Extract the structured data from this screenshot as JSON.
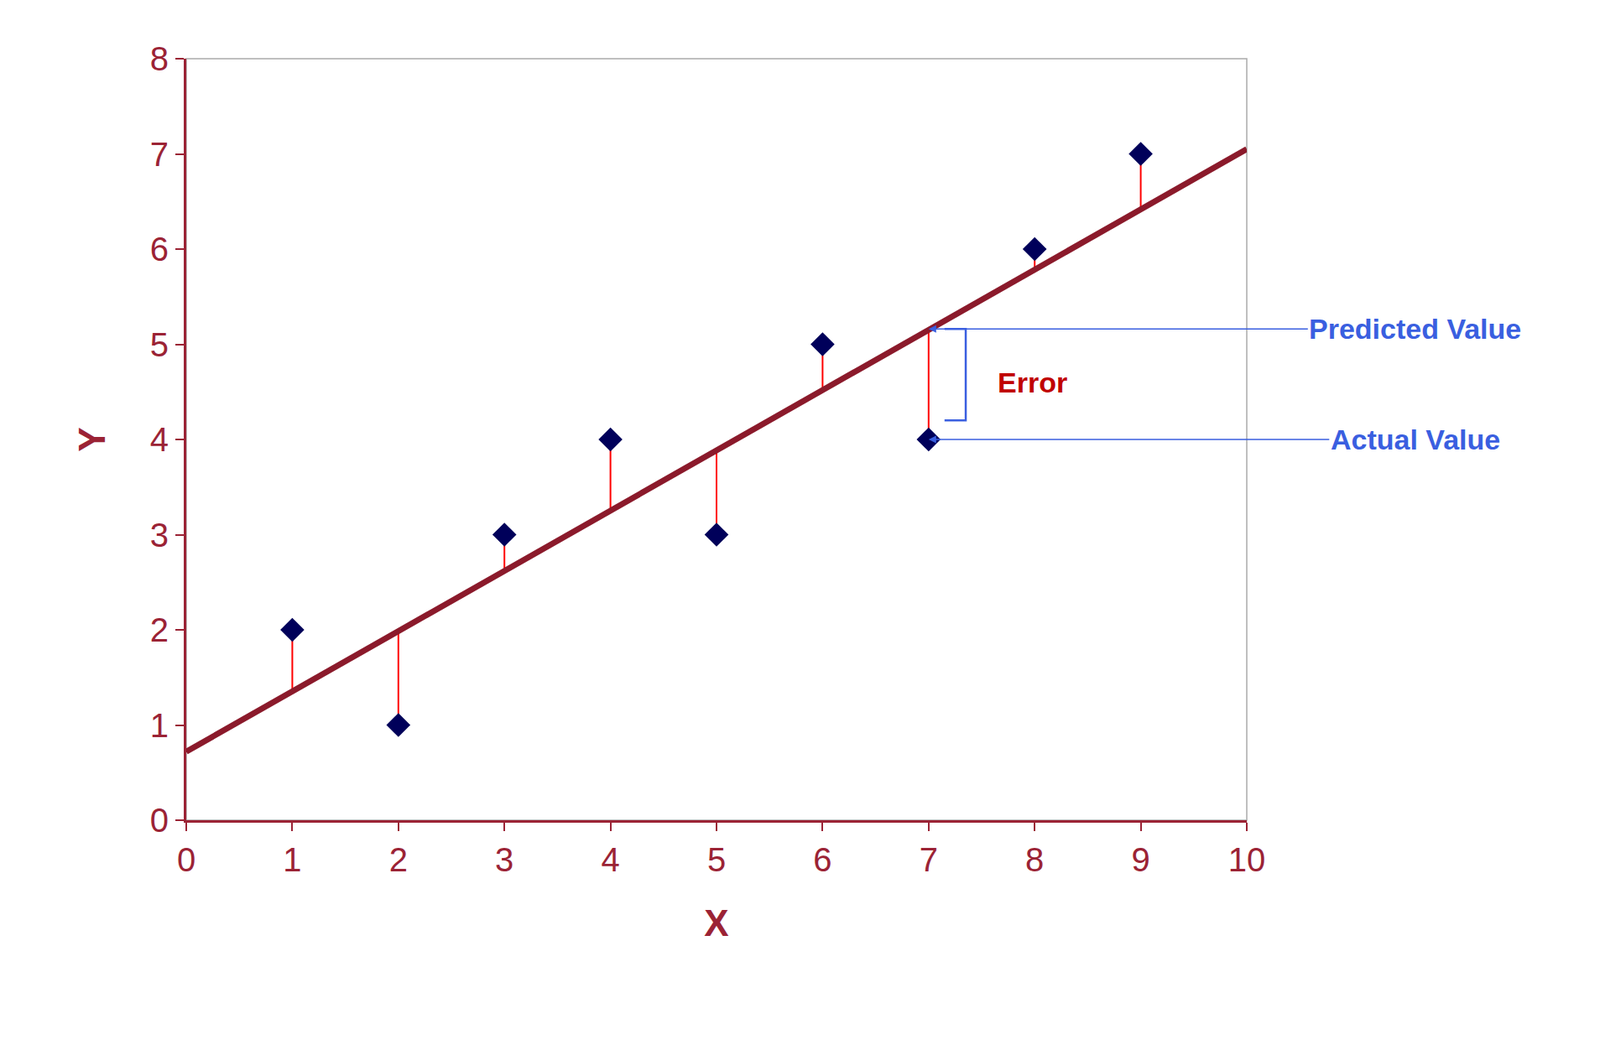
{
  "chart_data": {
    "type": "scatter",
    "x_label": "X",
    "y_label": "Y",
    "x": [
      1,
      2,
      3,
      4,
      5,
      6,
      7,
      8,
      9
    ],
    "values": [
      2,
      1,
      3,
      4,
      3,
      5,
      4,
      6,
      7
    ],
    "predicted": [
      1.36,
      1.99,
      2.62,
      3.26,
      3.89,
      4.52,
      5.16,
      5.79,
      6.42
    ],
    "color": "#00005a",
    "marker": "diamond",
    "fit_line": {
      "x": [
        0,
        10
      ],
      "y": [
        0.72,
        7.05
      ],
      "color": "#8b1a2b"
    },
    "residual_color": "#ff0000",
    "xlim": [
      0,
      10
    ],
    "ylim": [
      0,
      8
    ],
    "xticks": [
      0,
      1,
      2,
      3,
      4,
      5,
      6,
      7,
      8,
      9,
      10
    ],
    "yticks": [
      0,
      1,
      2,
      3,
      4,
      5,
      6,
      7,
      8
    ],
    "grid": false,
    "annotations": [
      {
        "text": "Predicted Value",
        "x": 7,
        "y": 5.16,
        "color": "#3a5fe0"
      },
      {
        "text": "Error",
        "x": 7,
        "y": 4.6,
        "color": "#c00000"
      },
      {
        "text": "Actual Value",
        "x": 7,
        "y": 4,
        "color": "#3a5fe0"
      }
    ]
  }
}
